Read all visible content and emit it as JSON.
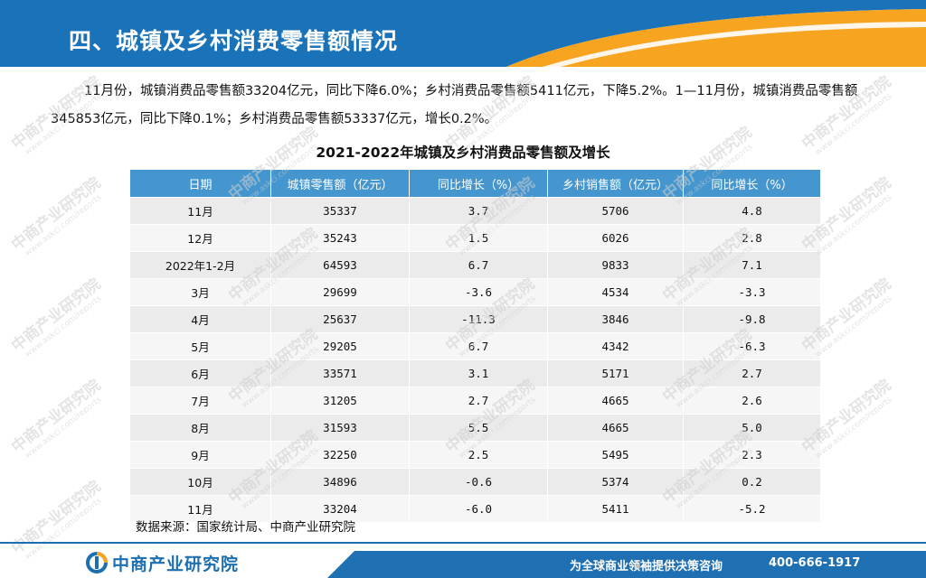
{
  "header": {
    "title": "四、城镇及乡村消费零售额情况",
    "colors": {
      "blue": "#1a73b8",
      "orange": "#f7a421"
    }
  },
  "intro": {
    "text": "11月份，城镇消费品零售额33204亿元，同比下降6.0%；乡村消费品零售额5411亿元，下降5.2%。1—11月份，城镇消费品零售额345853亿元，同比下降0.1%；乡村消费品零售额53337亿元，增长0.2%。"
  },
  "table": {
    "title": "2021-2022年城镇及乡村消费品零售额及增长",
    "headers": [
      "日期",
      "城镇零售额（亿元）",
      "同比增长（%）",
      "乡村销售额（亿元）",
      "同比增长（%）"
    ],
    "rows": [
      [
        "11月",
        "35337",
        "3.7",
        "5706",
        "4.8"
      ],
      [
        "12月",
        "35243",
        "1.5",
        "6026",
        "2.8"
      ],
      [
        "2022年1-2月",
        "64593",
        "6.7",
        "9833",
        "7.1"
      ],
      [
        "3月",
        "29699",
        "-3.6",
        "4534",
        "-3.3"
      ],
      [
        "4月",
        "25637",
        "-11.3",
        "3846",
        "-9.8"
      ],
      [
        "5月",
        "29205",
        "6.7",
        "4342",
        "-6.3"
      ],
      [
        "6月",
        "33571",
        "3.1",
        "5171",
        "2.7"
      ],
      [
        "7月",
        "31205",
        "2.7",
        "4665",
        "2.6"
      ],
      [
        "8月",
        "31593",
        "5.5",
        "4665",
        "5.0"
      ],
      [
        "9月",
        "32250",
        "2.5",
        "5495",
        "2.3"
      ],
      [
        "10月",
        "34896",
        "-0.6",
        "5374",
        "0.2"
      ],
      [
        "11月",
        "33204",
        "-6.0",
        "5411",
        "-5.2"
      ]
    ],
    "header_color": "#4596cf"
  },
  "source": "数据来源：国家统计局、中商产业研究院",
  "footer": {
    "logo_text": "中商产业研究院",
    "slogan": "为全球商业领袖提供决策咨询",
    "phone": "400-666-1917"
  },
  "watermark": {
    "name": "中商产业研究院",
    "url": "www.askci.com/reports"
  }
}
